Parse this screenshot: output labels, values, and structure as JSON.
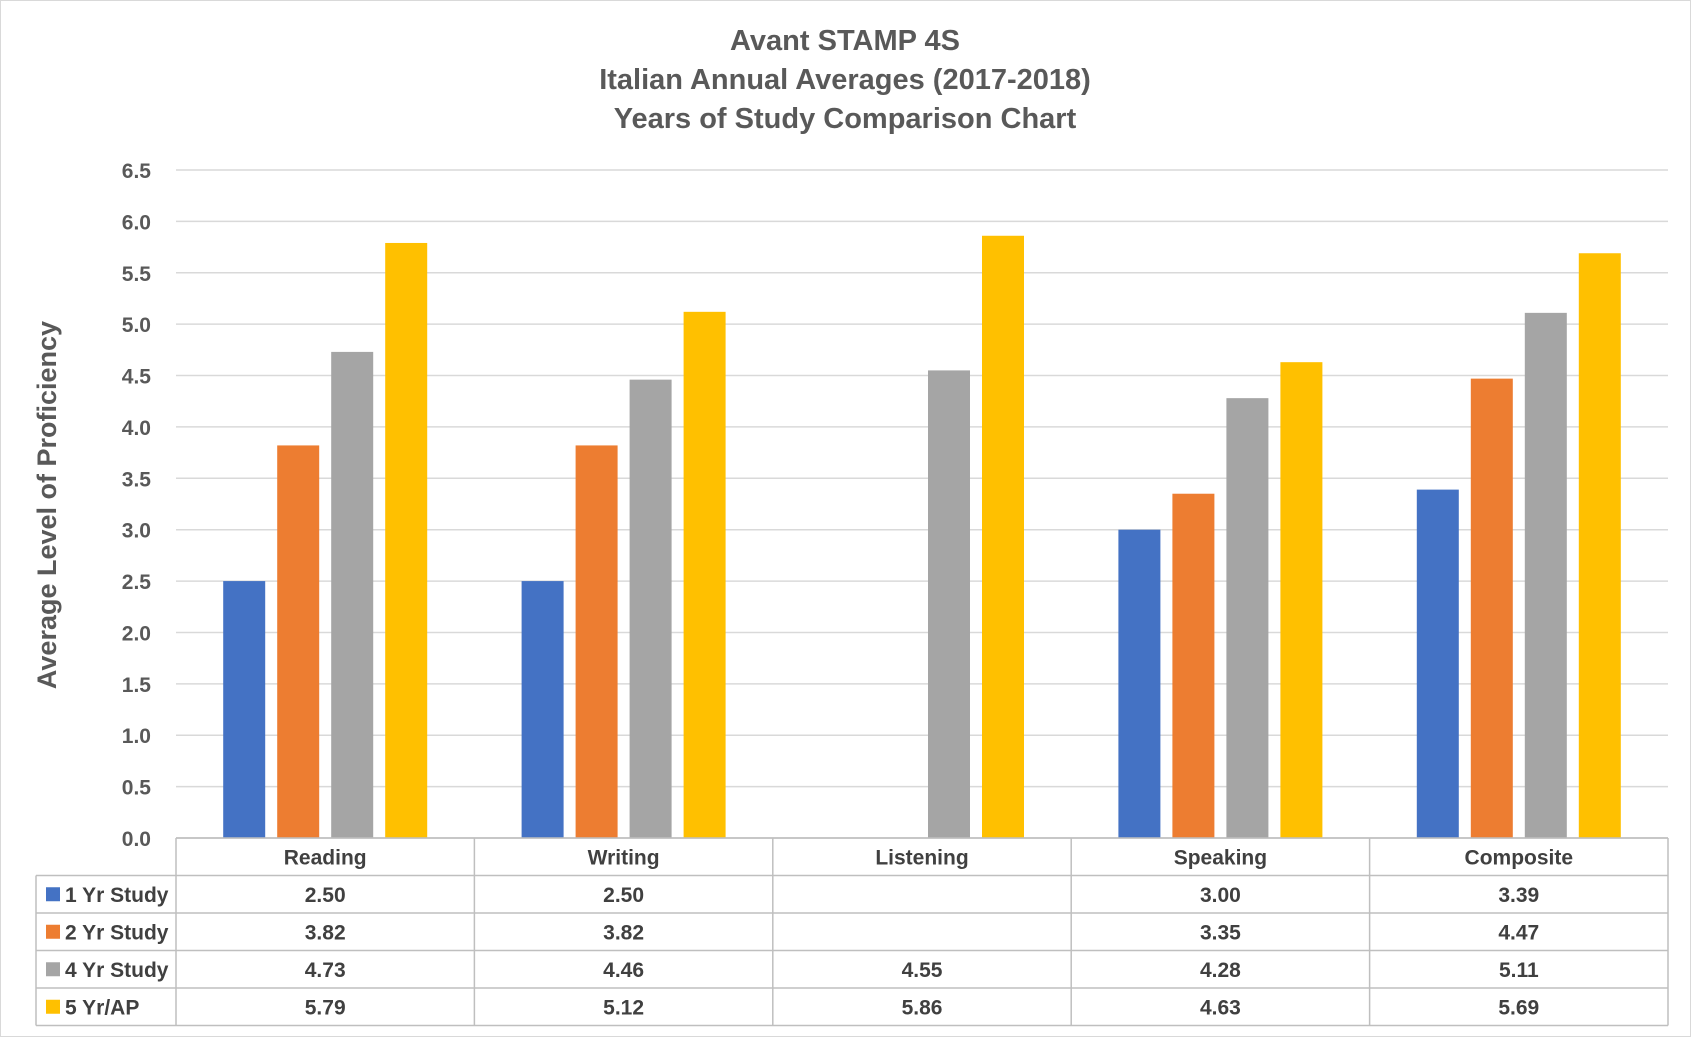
{
  "chart_data": {
    "type": "bar",
    "title": [
      "Avant STAMP 4S",
      "Italian Annual Averages (2017-2018)",
      "Years of Study Comparison Chart"
    ],
    "xlabel": "",
    "ylabel": "Average Level of Proficiency",
    "ylim": [
      0,
      6.5
    ],
    "ytick_step": 0.5,
    "y_ticks": [
      "0.0",
      "0.5",
      "1.0",
      "1.5",
      "2.0",
      "2.5",
      "3.0",
      "3.5",
      "4.0",
      "4.5",
      "5.0",
      "5.5",
      "6.0",
      "6.5"
    ],
    "grid": true,
    "legend": "data table",
    "categories": [
      "Reading",
      "Writing",
      "Listening",
      "Speaking",
      "Composite"
    ],
    "series": [
      {
        "name": "1 Yr Study",
        "color": "#4472C4",
        "values": [
          2.5,
          2.5,
          null,
          3.0,
          3.39
        ],
        "labels": [
          "2.50",
          "2.50",
          "",
          "3.00",
          "3.39"
        ]
      },
      {
        "name": "2 Yr Study",
        "color": "#ED7D31",
        "values": [
          3.82,
          3.82,
          null,
          3.35,
          4.47
        ],
        "labels": [
          "3.82",
          "3.82",
          "",
          "3.35",
          "4.47"
        ]
      },
      {
        "name": "4 Yr Study",
        "color": "#A5A5A5",
        "values": [
          4.73,
          4.46,
          4.55,
          4.28,
          5.11
        ],
        "labels": [
          "4.73",
          "4.46",
          "4.55",
          "4.28",
          "5.11"
        ]
      },
      {
        "name": "5 Yr/AP",
        "color": "#FFC000",
        "values": [
          5.79,
          5.12,
          5.86,
          4.63,
          5.69
        ],
        "labels": [
          "5.79",
          "5.12",
          "5.86",
          "4.63",
          "5.69"
        ]
      }
    ]
  }
}
